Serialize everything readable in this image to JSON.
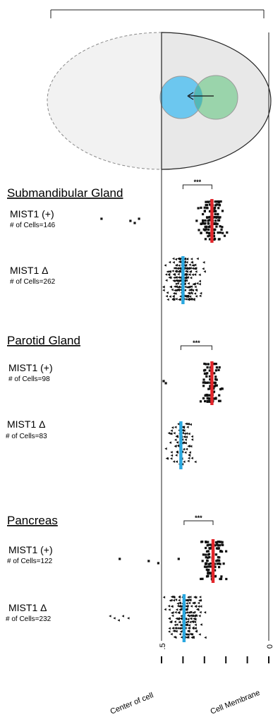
{
  "chart_data": {
    "type": "scatter",
    "subtitle": "",
    "x_axis": {
      "label_left": "Center of cell",
      "label_right": "Cell Membrane",
      "ticks": [
        {
          "value": 0.5,
          "label": ".5"
        },
        {
          "value": 0.4,
          "label": ""
        },
        {
          "value": 0.3,
          "label": ""
        },
        {
          "value": 0.2,
          "label": ""
        },
        {
          "value": 0.1,
          "label": ""
        },
        {
          "value": 0.0,
          "label": "0"
        }
      ],
      "xlim": [
        0.5,
        0.0
      ],
      "reversed": true
    },
    "significance_label": "***",
    "panels": [
      {
        "title": "Submandibular Gland",
        "groups": [
          {
            "name": "MIST1 (+)",
            "count_label": "# of Cells=146",
            "n": 146,
            "mean_x": 0.265,
            "spread": 0.055,
            "marker": "square",
            "mean_color": "#e3262b",
            "outliers": [
              0.78,
              0.645,
              0.625,
              0.605
            ]
          },
          {
            "name": "MIST1 Δ",
            "count_label": "# of Cells=262",
            "n": 262,
            "mean_x": 0.4,
            "spread": 0.07,
            "marker": "triangle",
            "mean_color": "#2aa8e0",
            "outliers": []
          }
        ]
      },
      {
        "title": "Parotid Gland",
        "groups": [
          {
            "name": "MIST1 (+)",
            "count_label": "# of Cells=98",
            "n": 98,
            "mean_x": 0.265,
            "spread": 0.045,
            "marker": "square",
            "mean_color": "#e3262b",
            "outliers": [
              0.49,
              0.48
            ]
          },
          {
            "name": "MIST1 Δ",
            "count_label": "# of Cells=83",
            "n": 83,
            "mean_x": 0.41,
            "spread": 0.055,
            "marker": "triangle",
            "mean_color": "#2aa8e0",
            "outliers": []
          }
        ]
      },
      {
        "title": "Pancreas",
        "groups": [
          {
            "name": "MIST1 (+)",
            "count_label": "# of Cells=122",
            "n": 122,
            "mean_x": 0.26,
            "spread": 0.045,
            "marker": "square",
            "mean_color": "#e3262b",
            "outliers": [
              0.695,
              0.56,
              0.515,
              0.42
            ]
          },
          {
            "name": "MIST1 Δ",
            "count_label": "# of Cells=232",
            "n": 232,
            "mean_x": 0.395,
            "spread": 0.07,
            "marker": "triangle",
            "mean_color": "#2aa8e0",
            "outliers": [
              0.74,
              0.72,
              0.7,
              0.68,
              0.655
            ]
          }
        ]
      }
    ],
    "diagram": {
      "nucleus_positions": [
        "center",
        "offset"
      ],
      "colors": {
        "cell_fill": "#e8e8e8",
        "blue_circle": "#6cc7ef",
        "green_circle": "#8cd0a0",
        "overlap": "#53b8b6"
      }
    }
  }
}
